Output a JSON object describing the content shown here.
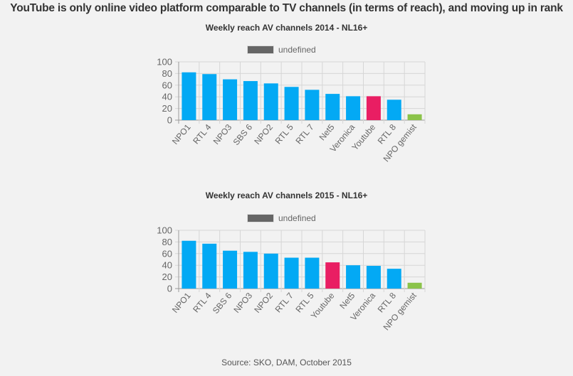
{
  "page": {
    "title": "YouTube is only online video platform comparable to TV channels (in terms of reach), and moving up in rank",
    "source": "Source: SKO, DAM, October 2015"
  },
  "colors": {
    "tv": "#03A9F4",
    "youtube": "#E91E63",
    "online": "#8BC34A",
    "legend": "#666666",
    "background": "#F2F2F2"
  },
  "chart_data": [
    {
      "type": "bar",
      "title": "Weekly reach AV channels 2014 - NL16+",
      "legend": [
        "undefined"
      ],
      "legend_position": "top",
      "categories": [
        "NPO1",
        "RTL 4",
        "NPO3",
        "SBS 6",
        "NPO2",
        "RTL 5",
        "RTL 7",
        "Net5",
        "Veronica",
        "Youtube",
        "RTL 8",
        "NPO gemist"
      ],
      "values": [
        82,
        79,
        70,
        67,
        63,
        57,
        52,
        45,
        41,
        41,
        35,
        10
      ],
      "bar_colors": [
        "#03A9F4",
        "#03A9F4",
        "#03A9F4",
        "#03A9F4",
        "#03A9F4",
        "#03A9F4",
        "#03A9F4",
        "#03A9F4",
        "#03A9F4",
        "#E91E63",
        "#03A9F4",
        "#8BC34A"
      ],
      "ylim": [
        0,
        100
      ],
      "yticks": [
        0,
        20,
        40,
        60,
        80,
        100
      ],
      "xlabel": "",
      "ylabel": "",
      "grid": true
    },
    {
      "type": "bar",
      "title": "Weekly reach AV channels 2015 - NL16+",
      "legend": [
        "undefined"
      ],
      "legend_position": "top",
      "categories": [
        "NPO1",
        "RTL 4",
        "SBS 6",
        "NPO3",
        "NPO2",
        "RTL 7",
        "RTL 5",
        "Youtube",
        "Net5",
        "Veronica",
        "RTL 8",
        "NPO gemist"
      ],
      "values": [
        82,
        77,
        65,
        63,
        60,
        53,
        53,
        45,
        40,
        39,
        34,
        10
      ],
      "bar_colors": [
        "#03A9F4",
        "#03A9F4",
        "#03A9F4",
        "#03A9F4",
        "#03A9F4",
        "#03A9F4",
        "#03A9F4",
        "#E91E63",
        "#03A9F4",
        "#03A9F4",
        "#03A9F4",
        "#8BC34A"
      ],
      "ylim": [
        0,
        100
      ],
      "yticks": [
        0,
        20,
        40,
        60,
        80,
        100
      ],
      "xlabel": "",
      "ylabel": "",
      "grid": true
    }
  ]
}
